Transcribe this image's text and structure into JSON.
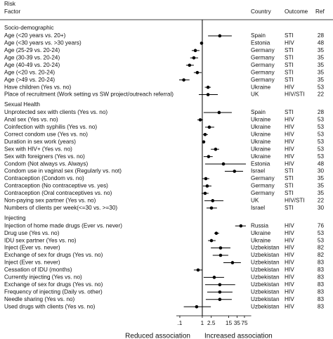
{
  "chart_data": {
    "type": "forest",
    "header": {
      "risk": "Risk",
      "factor": "Factor",
      "country": "Country",
      "outcome": "Outcome",
      "ref": "Ref"
    },
    "xlabel_left": "Reduced association",
    "xlabel_right": "Increased association",
    "log_x": true,
    "xlim": [
      0.07,
      150
    ],
    "xticks": [
      {
        "value": 0.1,
        "label": ".1"
      },
      1,
      2.5,
      15,
      35,
      75
    ],
    "null_value": 1,
    "color": "#000000",
    "sections": [
      {
        "name": "Socio-demographic",
        "rows": [
          {
            "factor": "Age (<20 years vs. 20+)",
            "country": "Spain",
            "outcome": "STI",
            "ref": 28,
            "estimate": 6.0,
            "lower": 1.8,
            "upper": 20.5
          },
          {
            "factor": "Age (<30 years vs. >30 years)",
            "country": "Estonia",
            "outcome": "HIV",
            "ref": 48,
            "estimate": 0.93,
            "lower": 0.88,
            "upper": 0.98
          },
          {
            "factor": "Age (25-29 vs. 20-24)",
            "country": "Germany",
            "outcome": "STI",
            "ref": 35,
            "estimate": 0.49,
            "lower": 0.34,
            "upper": 0.75
          },
          {
            "factor": "Age (30-39 vs. 20-24)",
            "country": "Germany",
            "outcome": "STI",
            "ref": 35,
            "estimate": 0.42,
            "lower": 0.29,
            "upper": 0.65
          },
          {
            "factor": "Age (40-49 vs. 20-24)",
            "country": "Germany",
            "outcome": "STI",
            "ref": 35,
            "estimate": 0.27,
            "lower": 0.19,
            "upper": 0.42
          },
          {
            "factor": "Age (<20 vs. 20-24)",
            "country": "Germany",
            "outcome": "STI",
            "ref": 35,
            "estimate": 0.6,
            "lower": 0.42,
            "upper": 0.93
          },
          {
            "factor": "Age (>49 vs. 20-24)",
            "country": "Germany",
            "outcome": "STI",
            "ref": 35,
            "estimate": 0.15,
            "lower": 0.093,
            "upper": 0.27
          },
          {
            "factor": "Have children (Yes vs. no)",
            "country": "Ukraine",
            "outcome": "HIV",
            "ref": 53,
            "estimate": 1.8,
            "lower": 1.3,
            "upper": 2.4
          },
          {
            "factor": "Place of recruitment  (Work setting vs SW project/outreach referral)",
            "country": "UK",
            "outcome": "HIV/STI",
            "ref": 22,
            "estimate": 1.8,
            "lower": 0.7,
            "upper": 4.9
          }
        ]
      },
      {
        "name": "Sexual Health",
        "rows": [
          {
            "factor": "Unprotected sex with clients  (Yes vs. no)",
            "country": "Spain",
            "outcome": "STI",
            "ref": 28,
            "estimate": 5.6,
            "lower": 1.15,
            "upper": 20.5
          },
          {
            "factor": "Anal sex  (Yes vs. no)",
            "country": "Ukraine",
            "outcome": "HIV",
            "ref": 53,
            "estimate": 0.81,
            "lower": 0.6,
            "upper": 1.07
          },
          {
            "factor": "Coinfection with syphilis  (Yes vs. no)",
            "country": "Ukraine",
            "outcome": "HIV",
            "ref": 53,
            "estimate": 2.05,
            "lower": 1.33,
            "upper": 3.4
          },
          {
            "factor": "Correct condom use  (Yes vs. no)",
            "country": "Ukraine",
            "outcome": "HIV",
            "ref": 53,
            "estimate": 1.33,
            "lower": 1.07,
            "upper": 1.78
          },
          {
            "factor": "Duration in sex work  (years)",
            "country": "Ukraine",
            "outcome": "HIV",
            "ref": 53,
            "estimate": 1.15,
            "lower": 1.07,
            "upper": 1.24
          },
          {
            "factor": "Sex with HIV+  (Yes vs. no)",
            "country": "Ukraine",
            "outcome": "HIV",
            "ref": 53,
            "estimate": 3.9,
            "lower": 2.4,
            "upper": 5.6
          },
          {
            "factor": "Sex with foreigners  (Yes vs. no)",
            "country": "Ukraine",
            "outcome": "HIV",
            "ref": 53,
            "estimate": 1.9,
            "lower": 1.15,
            "upper": 2.9
          },
          {
            "factor": "Condom  (Not always vs.  Always)",
            "country": "Estonia",
            "outcome": "HIV",
            "ref": 48,
            "estimate": 8.7,
            "lower": 1.33,
            "upper": 87
          },
          {
            "factor": "Condom use in vaginal sex  (Regularly vs. not)",
            "country": "Israel",
            "outcome": "STI",
            "ref": 30,
            "estimate": 27,
            "lower": 10,
            "upper": 65
          },
          {
            "factor": "Contraception  (Condom vs. no)",
            "country": "Germany",
            "outcome": "STI",
            "ref": 35,
            "estimate": 1.43,
            "lower": 1.0,
            "upper": 2.05
          },
          {
            "factor": "Contraception  (No contraceptive vs. yes)",
            "country": "Germany",
            "outcome": "STI",
            "ref": 35,
            "estimate": 1.65,
            "lower": 1.07,
            "upper": 2.55
          },
          {
            "factor": "Contraception  (Oral contraceptives vs. no)",
            "country": "Germany",
            "outcome": "STI",
            "ref": 35,
            "estimate": 1.33,
            "lower": 0.93,
            "upper": 1.9
          },
          {
            "factor": "Non-paying sex partner  (Yes vs. no)",
            "country": "UK",
            "outcome": "HIV/STI",
            "ref": 22,
            "estimate": 2.9,
            "lower": 1.24,
            "upper": 8.7
          },
          {
            "factor": "Numbers of clients per week(<=30 vs. >=30)",
            "country": "Israel",
            "outcome": "STI",
            "ref": 30,
            "estimate": 2.55,
            "lower": 1.54,
            "upper": 4.5
          }
        ]
      },
      {
        "name": "Injecting",
        "rows": [
          {
            "factor": "Injection of home made drugs  (Ever vs. never)",
            "country": "Russia",
            "outcome": "HIV",
            "ref": 76,
            "estimate": 52,
            "lower": 29,
            "upper": 87
          },
          {
            "factor": "Drug use  (Yes vs. no)",
            "country": "Ukraine",
            "outcome": "HIV",
            "ref": 53,
            "estimate": 4.2,
            "lower": 3.4,
            "upper": 5.6
          },
          {
            "factor": "IDU sex partner  (Yes vs. no)",
            "country": "Ukraine",
            "outcome": "HIV",
            "ref": 53,
            "estimate": 2.55,
            "lower": 1.8,
            "upper": 3.9
          },
          {
            "factor": "Inject  (Ever vs. never)",
            "country": "Uzbekistan",
            "outcome": "HIV",
            "ref": 82,
            "estimate": 6.5,
            "lower": 2.4,
            "upper": 17.8
          },
          {
            "factor": "Exchange of sex for drugs  (Yes vs. no)",
            "country": "Uzbekistan",
            "outcome": "HIV",
            "ref": 82,
            "estimate": 6.5,
            "lower": 2.9,
            "upper": 14.3
          },
          {
            "factor": "Inject  (Ever vs. never)",
            "country": "Uzbekistan",
            "outcome": "HIV",
            "ref": 83,
            "estimate": 22,
            "lower": 8.7,
            "upper": 52
          },
          {
            "factor": "Cessation of IDU  (months)",
            "country": "Uzbekistan",
            "outcome": "HIV",
            "ref": 83,
            "estimate": 0.65,
            "lower": 0.42,
            "upper": 1.0
          },
          {
            "factor": "Currently injecting  (Yes vs. no)",
            "country": "Uzbekistan",
            "outcome": "HIV",
            "ref": 83,
            "estimate": 3.4,
            "lower": 1.15,
            "upper": 9.3
          },
          {
            "factor": "Exchange of sex for drugs  (Yes vs. no)",
            "country": "Uzbekistan",
            "outcome": "HIV",
            "ref": 83,
            "estimate": 6.0,
            "lower": 1.33,
            "upper": 29
          },
          {
            "factor": "Frequency of injecting  (Daily vs. other)",
            "country": "Uzbekistan",
            "outcome": "HIV",
            "ref": 83,
            "estimate": 6.0,
            "lower": 1.65,
            "upper": 22
          },
          {
            "factor": "Needle sharing  (Yes vs. no)",
            "country": "Uzbekistan",
            "outcome": "HIV",
            "ref": 83,
            "estimate": 6.0,
            "lower": 1.43,
            "upper": 20.5
          },
          {
            "factor": "Used drugs with clients  (Yes vs. no)",
            "country": "Uzbekistan",
            "outcome": "HIV",
            "ref": 83,
            "estimate": 0.56,
            "lower": 0.15,
            "upper": 2.4
          }
        ]
      }
    ]
  }
}
